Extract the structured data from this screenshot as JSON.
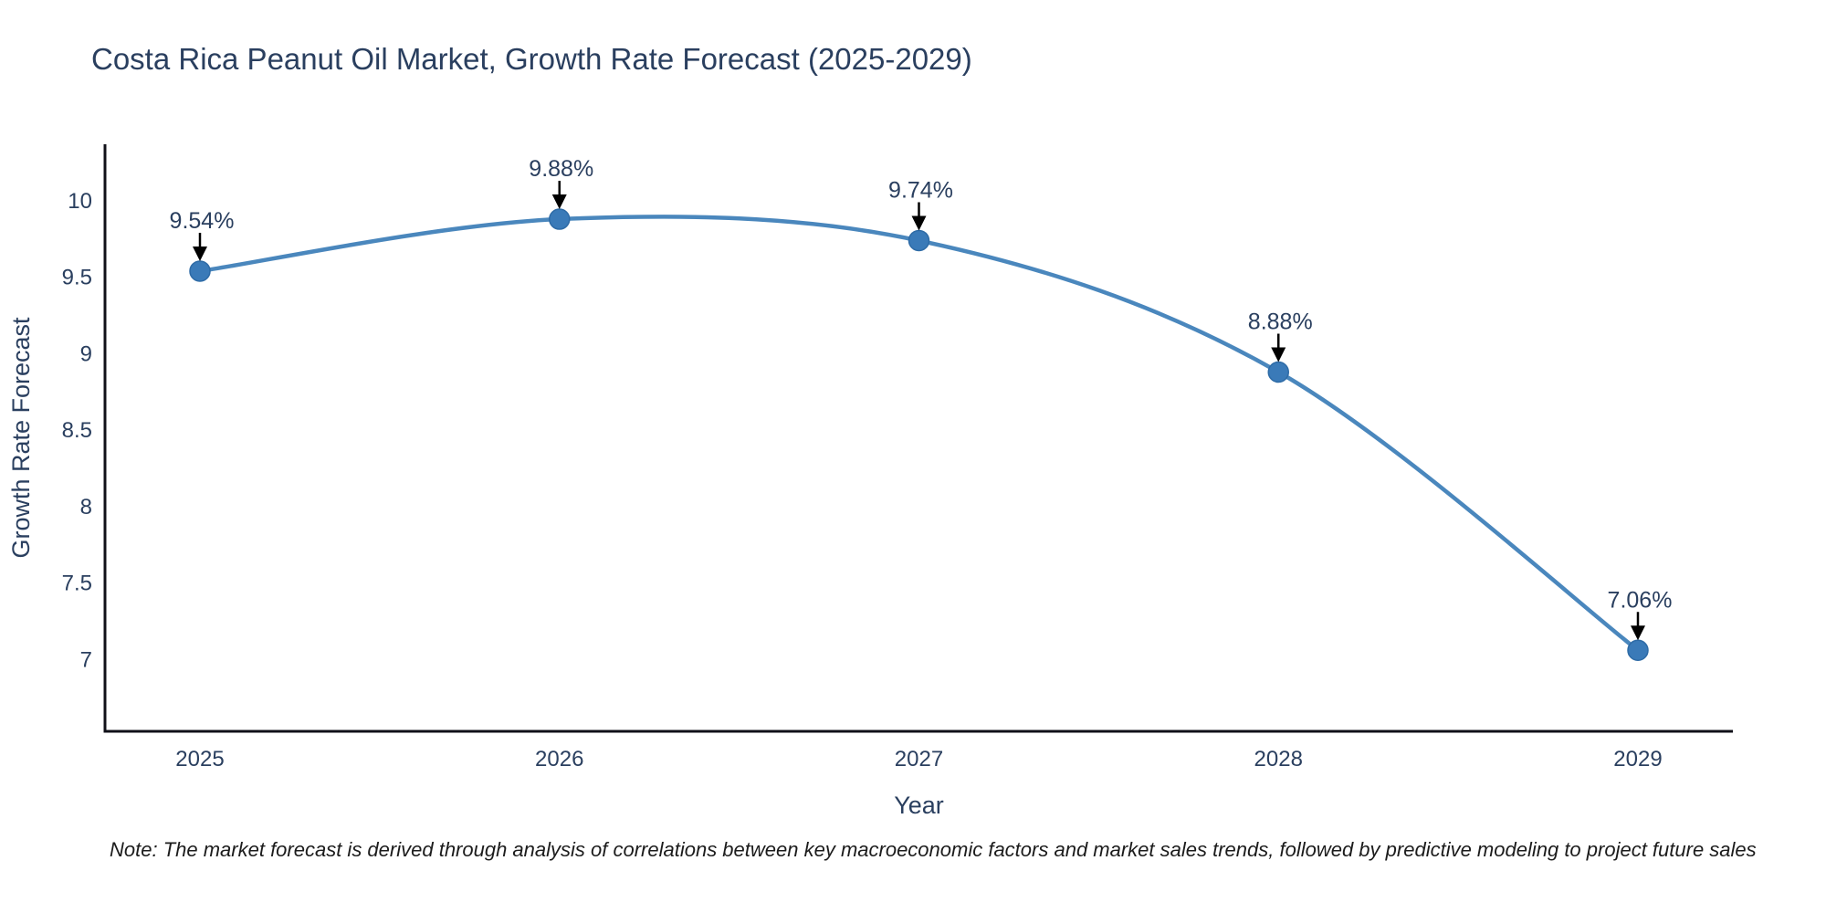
{
  "title": "Costa Rica Peanut Oil Market, Growth Rate Forecast (2025-2029)",
  "footnote": "Note: The market forecast is derived through analysis of correlations between key macroeconomic factors and market sales trends, followed by predictive modeling to project future sales",
  "chart_data": {
    "type": "line",
    "title": "Costa Rica Peanut Oil Market, Growth Rate Forecast (2025-2029)",
    "xlabel": "Year",
    "ylabel": "Growth Rate Forecast",
    "x": [
      2025,
      2026,
      2027,
      2028,
      2029
    ],
    "series": [
      {
        "name": "Growth Rate Forecast",
        "values": [
          9.54,
          9.88,
          9.74,
          8.88,
          7.06
        ],
        "point_labels": [
          "9.54%",
          "9.88%",
          "9.74%",
          "8.88%",
          "7.06%"
        ]
      }
    ],
    "yticks": [
      7,
      7.5,
      8,
      8.5,
      9,
      9.5,
      10
    ],
    "ylim": [
      6.53,
      10.37
    ],
    "grid": false,
    "legend": "none",
    "line_shape": "spline",
    "annotations_have_arrows": true,
    "colors": {
      "line": "#4a87bd",
      "marker": "#3a7ab8",
      "marker_edge": "#2e6ba6",
      "axis_line": "#101018",
      "text": "#2a3f5f",
      "annotation_text": "#2a3f5f",
      "annotation_arrow": "#000000",
      "background": "#ffffff"
    }
  }
}
